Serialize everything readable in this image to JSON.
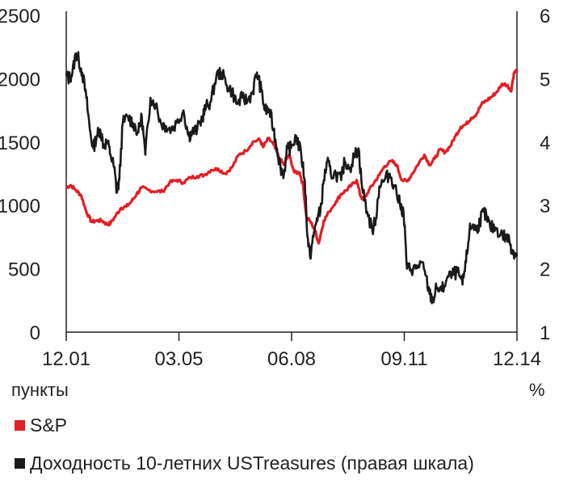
{
  "chart_data": {
    "type": "line",
    "units": {
      "left": "пункты",
      "right": "%"
    },
    "x_ticks": [
      "12.01",
      "03.05",
      "06.08",
      "09.11",
      "12.14"
    ],
    "y_left": {
      "ticks": [
        0,
        500,
        1000,
        1500,
        2000,
        2500
      ],
      "range": [
        0,
        2500
      ]
    },
    "y_right": {
      "ticks": [
        1,
        2,
        3,
        4,
        5,
        6
      ],
      "range": [
        1,
        6
      ]
    },
    "x_range": [
      2001.92,
      2014.92
    ],
    "series": [
      {
        "name": "S&P",
        "axis": "left",
        "color": "#e31e24",
        "points": [
          [
            2001.92,
            1140
          ],
          [
            2002.05,
            1160
          ],
          [
            2002.2,
            1120
          ],
          [
            2002.35,
            1080
          ],
          [
            2002.5,
            950
          ],
          [
            2002.65,
            870
          ],
          [
            2002.8,
            880
          ],
          [
            2002.95,
            880
          ],
          [
            2003.1,
            850
          ],
          [
            2003.2,
            860
          ],
          [
            2003.35,
            920
          ],
          [
            2003.5,
            980
          ],
          [
            2003.65,
            990
          ],
          [
            2003.8,
            1030
          ],
          [
            2003.95,
            1090
          ],
          [
            2004.1,
            1140
          ],
          [
            2004.3,
            1120
          ],
          [
            2004.5,
            1110
          ],
          [
            2004.7,
            1110
          ],
          [
            2004.9,
            1180
          ],
          [
            2005.1,
            1200
          ],
          [
            2005.3,
            1180
          ],
          [
            2005.5,
            1220
          ],
          [
            2005.7,
            1230
          ],
          [
            2005.9,
            1240
          ],
          [
            2006.1,
            1280
          ],
          [
            2006.3,
            1290
          ],
          [
            2006.5,
            1250
          ],
          [
            2006.7,
            1300
          ],
          [
            2006.9,
            1400
          ],
          [
            2007.1,
            1430
          ],
          [
            2007.3,
            1500
          ],
          [
            2007.5,
            1520
          ],
          [
            2007.6,
            1460
          ],
          [
            2007.75,
            1530
          ],
          [
            2007.9,
            1480
          ],
          [
            2008.05,
            1380
          ],
          [
            2008.2,
            1320
          ],
          [
            2008.35,
            1400
          ],
          [
            2008.5,
            1260
          ],
          [
            2008.65,
            1260
          ],
          [
            2008.75,
            1160
          ],
          [
            2008.85,
            900
          ],
          [
            2008.95,
            880
          ],
          [
            2009.1,
            800
          ],
          [
            2009.2,
            700
          ],
          [
            2009.35,
            880
          ],
          [
            2009.5,
            950
          ],
          [
            2009.7,
            1030
          ],
          [
            2009.85,
            1090
          ],
          [
            2010.0,
            1120
          ],
          [
            2010.15,
            1160
          ],
          [
            2010.3,
            1200
          ],
          [
            2010.4,
            1080
          ],
          [
            2010.5,
            1040
          ],
          [
            2010.65,
            1120
          ],
          [
            2010.8,
            1180
          ],
          [
            2010.95,
            1240
          ],
          [
            2011.1,
            1310
          ],
          [
            2011.3,
            1350
          ],
          [
            2011.45,
            1320
          ],
          [
            2011.6,
            1200
          ],
          [
            2011.75,
            1190
          ],
          [
            2011.9,
            1250
          ],
          [
            2012.1,
            1340
          ],
          [
            2012.25,
            1400
          ],
          [
            2012.4,
            1320
          ],
          [
            2012.55,
            1370
          ],
          [
            2012.7,
            1440
          ],
          [
            2012.85,
            1420
          ],
          [
            2013.0,
            1470
          ],
          [
            2013.15,
            1550
          ],
          [
            2013.3,
            1620
          ],
          [
            2013.45,
            1640
          ],
          [
            2013.6,
            1690
          ],
          [
            2013.75,
            1720
          ],
          [
            2013.9,
            1800
          ],
          [
            2014.05,
            1830
          ],
          [
            2014.2,
            1860
          ],
          [
            2014.35,
            1900
          ],
          [
            2014.5,
            1960
          ],
          [
            2014.65,
            1950
          ],
          [
            2014.75,
            1900
          ],
          [
            2014.83,
            2040
          ],
          [
            2014.92,
            2070
          ]
        ]
      },
      {
        "name": "Доходность 10-летних USTreasures (правая шкала)",
        "axis": "right",
        "color": "#1a1a1a",
        "points": [
          [
            2001.92,
            5.05
          ],
          [
            2002.0,
            5.0
          ],
          [
            2002.1,
            5.1
          ],
          [
            2002.2,
            5.4
          ],
          [
            2002.28,
            5.3
          ],
          [
            2002.38,
            5.1
          ],
          [
            2002.5,
            4.7
          ],
          [
            2002.6,
            4.2
          ],
          [
            2002.7,
            3.9
          ],
          [
            2002.8,
            4.1
          ],
          [
            2002.9,
            4.2
          ],
          [
            2003.0,
            3.95
          ],
          [
            2003.1,
            4.0
          ],
          [
            2003.2,
            3.8
          ],
          [
            2003.3,
            3.6
          ],
          [
            2003.38,
            3.2
          ],
          [
            2003.45,
            3.4
          ],
          [
            2003.55,
            4.3
          ],
          [
            2003.7,
            4.4
          ],
          [
            2003.85,
            4.3
          ],
          [
            2004.0,
            4.15
          ],
          [
            2004.1,
            4.4
          ],
          [
            2004.2,
            3.8
          ],
          [
            2004.35,
            4.7
          ],
          [
            2004.5,
            4.6
          ],
          [
            2004.65,
            4.3
          ],
          [
            2004.8,
            4.25
          ],
          [
            2004.95,
            4.2
          ],
          [
            2005.1,
            4.3
          ],
          [
            2005.3,
            4.5
          ],
          [
            2005.45,
            4.1
          ],
          [
            2005.55,
            4.15
          ],
          [
            2005.7,
            4.2
          ],
          [
            2005.85,
            4.4
          ],
          [
            2005.95,
            4.55
          ],
          [
            2006.1,
            4.65
          ],
          [
            2006.25,
            5.05
          ],
          [
            2006.4,
            5.1
          ],
          [
            2006.55,
            4.9
          ],
          [
            2006.7,
            4.8
          ],
          [
            2006.85,
            4.6
          ],
          [
            2007.0,
            4.7
          ],
          [
            2007.15,
            4.65
          ],
          [
            2007.3,
            4.8
          ],
          [
            2007.42,
            5.1
          ],
          [
            2007.55,
            4.8
          ],
          [
            2007.65,
            4.5
          ],
          [
            2007.78,
            4.5
          ],
          [
            2007.9,
            4.2
          ],
          [
            2008.0,
            3.9
          ],
          [
            2008.1,
            3.6
          ],
          [
            2008.2,
            3.5
          ],
          [
            2008.3,
            3.9
          ],
          [
            2008.4,
            3.9
          ],
          [
            2008.55,
            4.1
          ],
          [
            2008.7,
            3.8
          ],
          [
            2008.8,
            3.4
          ],
          [
            2008.88,
            2.5
          ],
          [
            2008.95,
            2.2
          ],
          [
            2009.05,
            2.5
          ],
          [
            2009.15,
            2.8
          ],
          [
            2009.25,
            2.9
          ],
          [
            2009.35,
            3.4
          ],
          [
            2009.45,
            3.7
          ],
          [
            2009.55,
            3.5
          ],
          [
            2009.7,
            3.5
          ],
          [
            2009.85,
            3.4
          ],
          [
            2009.95,
            3.7
          ],
          [
            2010.1,
            3.6
          ],
          [
            2010.25,
            3.8
          ],
          [
            2010.35,
            3.9
          ],
          [
            2010.45,
            3.3
          ],
          [
            2010.6,
            2.9
          ],
          [
            2010.75,
            2.6
          ],
          [
            2010.85,
            2.8
          ],
          [
            2010.95,
            3.3
          ],
          [
            2011.1,
            3.4
          ],
          [
            2011.25,
            3.5
          ],
          [
            2011.4,
            3.3
          ],
          [
            2011.55,
            3.0
          ],
          [
            2011.65,
            2.9
          ],
          [
            2011.75,
            2.0
          ],
          [
            2011.85,
            2.0
          ],
          [
            2012.0,
            2.0
          ],
          [
            2012.15,
            2.1
          ],
          [
            2012.28,
            1.9
          ],
          [
            2012.4,
            1.6
          ],
          [
            2012.5,
            1.5
          ],
          [
            2012.6,
            1.7
          ],
          [
            2012.75,
            1.65
          ],
          [
            2012.9,
            1.85
          ],
          [
            2013.05,
            1.9
          ],
          [
            2013.2,
            1.95
          ],
          [
            2013.35,
            1.75
          ],
          [
            2013.45,
            2.1
          ],
          [
            2013.55,
            2.6
          ],
          [
            2013.65,
            2.7
          ],
          [
            2013.75,
            2.6
          ],
          [
            2013.85,
            2.75
          ],
          [
            2013.95,
            2.9
          ],
          [
            2014.05,
            2.8
          ],
          [
            2014.15,
            2.65
          ],
          [
            2014.3,
            2.65
          ],
          [
            2014.45,
            2.55
          ],
          [
            2014.6,
            2.5
          ],
          [
            2014.7,
            2.45
          ],
          [
            2014.78,
            2.3
          ],
          [
            2014.85,
            2.25
          ],
          [
            2014.92,
            2.2
          ]
        ]
      }
    ]
  }
}
